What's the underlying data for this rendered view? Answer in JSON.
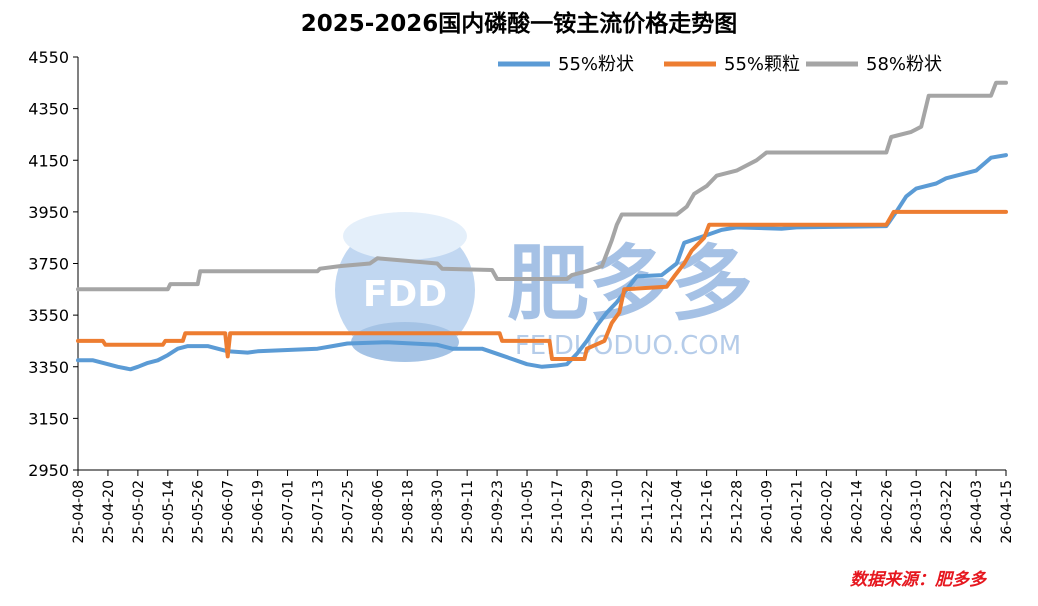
{
  "chart_data": {
    "type": "line",
    "title": "2025-2026国内磷酸一铵主流价格走势图",
    "ylim": [
      2950,
      4550
    ],
    "yticks": [
      2950,
      3150,
      3350,
      3550,
      3750,
      3950,
      4150,
      4350,
      4550
    ],
    "xticks": [
      "25-04-08",
      "25-04-20",
      "25-05-02",
      "25-05-14",
      "25-05-26",
      "25-06-07",
      "25-06-19",
      "25-07-01",
      "25-07-13",
      "25-07-25",
      "25-08-06",
      "25-08-18",
      "25-08-30",
      "25-09-11",
      "25-09-23",
      "25-10-05",
      "25-10-17",
      "25-10-29",
      "25-11-10",
      "25-11-22",
      "25-12-04",
      "25-12-16",
      "25-12-28",
      "26-01-09",
      "26-01-21",
      "26-02-02",
      "26-02-14",
      "26-02-26",
      "26-03-10",
      "26-03-22",
      "26-04-03",
      "26-04-15"
    ],
    "grid": false,
    "legend_position": "top-right",
    "source": "数据来源：肥多多",
    "watermark": {
      "brand": "FDD",
      "name": "肥多多",
      "url": "FEIDUODUO.COM"
    },
    "series": [
      {
        "name": "55%粉状",
        "color": "#5b9bd5",
        "points": [
          [
            "25-04-08",
            3375
          ],
          [
            "25-04-14",
            3375
          ],
          [
            "25-04-20",
            3360
          ],
          [
            "25-04-24",
            3350
          ],
          [
            "25-04-29",
            3340
          ],
          [
            "25-05-02",
            3350
          ],
          [
            "25-05-06",
            3365
          ],
          [
            "25-05-10",
            3375
          ],
          [
            "25-05-14",
            3395
          ],
          [
            "25-05-18",
            3420
          ],
          [
            "25-05-22",
            3430
          ],
          [
            "25-05-30",
            3430
          ],
          [
            "25-06-03",
            3420
          ],
          [
            "25-06-07",
            3410
          ],
          [
            "25-06-15",
            3405
          ],
          [
            "25-06-19",
            3410
          ],
          [
            "25-07-13",
            3420
          ],
          [
            "25-07-19",
            3430
          ],
          [
            "25-07-25",
            3440
          ],
          [
            "25-08-10",
            3445
          ],
          [
            "25-08-30",
            3435
          ],
          [
            "25-09-05",
            3420
          ],
          [
            "25-09-17",
            3420
          ],
          [
            "25-09-23",
            3400
          ],
          [
            "25-09-29",
            3380
          ],
          [
            "25-10-05",
            3360
          ],
          [
            "25-10-11",
            3350
          ],
          [
            "25-10-17",
            3355
          ],
          [
            "25-10-21",
            3360
          ],
          [
            "25-10-25",
            3400
          ],
          [
            "25-10-29",
            3450
          ],
          [
            "25-11-02",
            3510
          ],
          [
            "25-11-06",
            3560
          ],
          [
            "25-11-10",
            3600
          ],
          [
            "25-11-14",
            3650
          ],
          [
            "25-11-18",
            3700
          ],
          [
            "25-11-28",
            3705
          ],
          [
            "25-12-04",
            3750
          ],
          [
            "25-12-07",
            3830
          ],
          [
            "25-12-16",
            3860
          ],
          [
            "25-12-22",
            3880
          ],
          [
            "25-12-28",
            3890
          ],
          [
            "26-01-15",
            3885
          ],
          [
            "26-01-21",
            3890
          ],
          [
            "26-02-26",
            3895
          ],
          [
            "26-03-02",
            3950
          ],
          [
            "26-03-06",
            4010
          ],
          [
            "26-03-10",
            4040
          ],
          [
            "26-03-18",
            4060
          ],
          [
            "26-03-22",
            4080
          ],
          [
            "26-04-03",
            4110
          ],
          [
            "26-04-09",
            4160
          ],
          [
            "26-04-15",
            4170
          ]
        ]
      },
      {
        "name": "55%颗粒",
        "color": "#ed7d31",
        "points": [
          [
            "25-04-08",
            3450
          ],
          [
            "25-04-18",
            3450
          ],
          [
            "25-04-19",
            3435
          ],
          [
            "25-05-12",
            3435
          ],
          [
            "25-05-13",
            3450
          ],
          [
            "25-05-20",
            3450
          ],
          [
            "25-05-21",
            3480
          ],
          [
            "25-06-06",
            3480
          ],
          [
            "25-06-07",
            3390
          ],
          [
            "25-06-08",
            3480
          ],
          [
            "25-09-24",
            3480
          ],
          [
            "25-09-25",
            3450
          ],
          [
            "25-10-14",
            3450
          ],
          [
            "25-10-15",
            3380
          ],
          [
            "25-10-28",
            3380
          ],
          [
            "25-10-29",
            3420
          ],
          [
            "25-11-05",
            3450
          ],
          [
            "25-11-08",
            3520
          ],
          [
            "25-11-11",
            3560
          ],
          [
            "25-11-13",
            3650
          ],
          [
            "25-11-30",
            3660
          ],
          [
            "25-12-03",
            3700
          ],
          [
            "25-12-07",
            3750
          ],
          [
            "25-12-10",
            3800
          ],
          [
            "25-12-15",
            3850
          ],
          [
            "25-12-17",
            3900
          ],
          [
            "26-02-26",
            3900
          ],
          [
            "26-03-01",
            3950
          ],
          [
            "26-04-15",
            3950
          ]
        ]
      },
      {
        "name": "58%粉状",
        "color": "#a5a5a5",
        "points": [
          [
            "25-04-08",
            3650
          ],
          [
            "25-05-14",
            3650
          ],
          [
            "25-05-15",
            3670
          ],
          [
            "25-05-26",
            3670
          ],
          [
            "25-05-27",
            3720
          ],
          [
            "25-07-13",
            3720
          ],
          [
            "25-07-14",
            3730
          ],
          [
            "25-07-22",
            3740
          ],
          [
            "25-08-03",
            3750
          ],
          [
            "25-08-06",
            3770
          ],
          [
            "25-08-18",
            3760
          ],
          [
            "25-08-30",
            3750
          ],
          [
            "25-09-01",
            3730
          ],
          [
            "25-09-21",
            3725
          ],
          [
            "25-09-23",
            3690
          ],
          [
            "25-10-21",
            3690
          ],
          [
            "25-10-23",
            3705
          ],
          [
            "25-10-29",
            3720
          ],
          [
            "25-11-04",
            3740
          ],
          [
            "25-11-08",
            3840
          ],
          [
            "25-11-10",
            3900
          ],
          [
            "25-11-12",
            3940
          ],
          [
            "25-12-04",
            3940
          ],
          [
            "25-12-08",
            3970
          ],
          [
            "25-12-11",
            4020
          ],
          [
            "25-12-16",
            4050
          ],
          [
            "25-12-20",
            4090
          ],
          [
            "25-12-28",
            4110
          ],
          [
            "26-01-05",
            4150
          ],
          [
            "26-01-09",
            4180
          ],
          [
            "26-02-26",
            4180
          ],
          [
            "26-02-28",
            4240
          ],
          [
            "26-03-08",
            4260
          ],
          [
            "26-03-12",
            4280
          ],
          [
            "26-03-15",
            4400
          ],
          [
            "26-04-09",
            4400
          ],
          [
            "26-04-11",
            4450
          ],
          [
            "26-04-15",
            4450
          ]
        ]
      }
    ]
  }
}
